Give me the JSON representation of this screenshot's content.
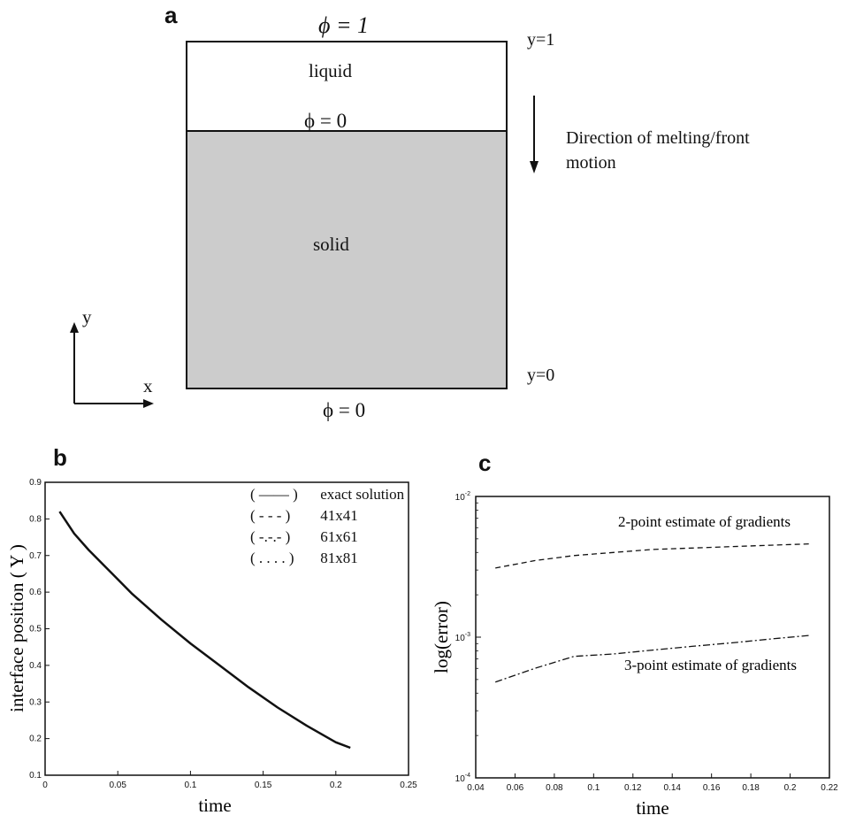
{
  "panel_a": {
    "letter": "a",
    "phi_top": "ϕ = 1",
    "y1_label": "y=1",
    "liquid_label": "liquid",
    "phi_interface": "ϕ = 0",
    "solid_label": "solid",
    "y0_label": "y=0",
    "phi_bottom": "ϕ = 0",
    "direction_line1": "Direction of melting/front",
    "direction_line2": "motion",
    "axis_y": "y",
    "axis_x": "x",
    "colors": {
      "solid_fill": "#cccccc",
      "liquid_fill": "#ffffff"
    }
  },
  "panel_b": {
    "letter": "b",
    "legend": [
      {
        "marker": "( —— )",
        "text": "exact solution"
      },
      {
        "marker": "( - - - )",
        "text": "41x41"
      },
      {
        "marker": "( -.-.- )",
        "text": "61x61"
      },
      {
        "marker": "( . . . . )",
        "text": "81x81"
      }
    ]
  },
  "panel_c": {
    "letter": "c",
    "annotation_top": "2-point estimate of gradients",
    "annotation_bottom": "3-point estimate of gradients"
  },
  "chart_data": [
    {
      "type": "line",
      "xlabel": "time",
      "ylabel": "interface position ( Y )",
      "xlim": [
        0,
        0.25
      ],
      "ylim": [
        0.1,
        0.9
      ],
      "xticks": [
        "0",
        "0.05",
        "0.1",
        "0.15",
        "0.2",
        "0.25"
      ],
      "yticks": [
        "0.1",
        "0.2",
        "0.3",
        "0.4",
        "0.5",
        "0.6",
        "0.7",
        "0.8",
        "0.9"
      ],
      "grid": false,
      "legend_position": "top-right",
      "series": [
        {
          "name": "exact solution",
          "style": "solid",
          "x": [
            0.01,
            0.02,
            0.03,
            0.04,
            0.05,
            0.06,
            0.08,
            0.1,
            0.12,
            0.14,
            0.16,
            0.18,
            0.2,
            0.21
          ],
          "y": [
            0.82,
            0.76,
            0.715,
            0.675,
            0.635,
            0.595,
            0.525,
            0.46,
            0.4,
            0.34,
            0.285,
            0.235,
            0.19,
            0.175
          ]
        }
      ]
    },
    {
      "type": "line",
      "xlabel": "time",
      "ylabel": "log(error)",
      "xlim": [
        0.04,
        0.22
      ],
      "ylim_log10": [
        -4,
        -2
      ],
      "xticks": [
        "0.04",
        "0.06",
        "0.08",
        "0.1",
        "0.12",
        "0.14",
        "0.16",
        "0.18",
        "0.2",
        "0.22"
      ],
      "yticks": [
        {
          "base": "10",
          "exp": "-2",
          "log10": -2
        },
        {
          "base": "10",
          "exp": "-3",
          "log10": -3
        },
        {
          "base": "10",
          "exp": "-4",
          "log10": -4
        }
      ],
      "grid": false,
      "series": [
        {
          "name": "2-point estimate of gradients",
          "style": "dashed",
          "x": [
            0.05,
            0.07,
            0.09,
            0.11,
            0.13,
            0.15,
            0.17,
            0.19,
            0.21
          ],
          "y": [
            0.0031,
            0.0035,
            0.0038,
            0.004,
            0.0042,
            0.0043,
            0.0044,
            0.0045,
            0.0046
          ]
        },
        {
          "name": "3-point estimate of gradients",
          "style": "dashdot",
          "x": [
            0.05,
            0.07,
            0.09,
            0.11,
            0.13,
            0.15,
            0.17,
            0.19,
            0.21
          ],
          "y": [
            0.00048,
            0.0006,
            0.00073,
            0.00076,
            0.00081,
            0.00086,
            0.00091,
            0.00097,
            0.00103
          ]
        }
      ]
    }
  ]
}
